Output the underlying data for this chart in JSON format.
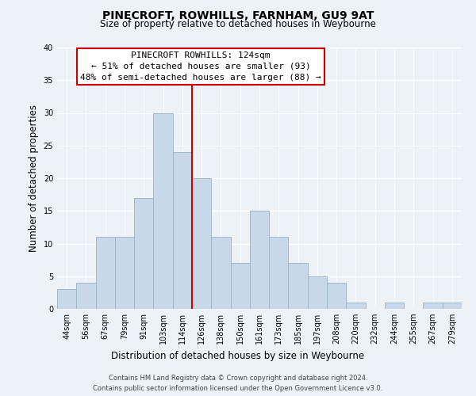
{
  "title": "PINECROFT, ROWHILLS, FARNHAM, GU9 9AT",
  "subtitle": "Size of property relative to detached houses in Weybourne",
  "xlabel": "Distribution of detached houses by size in Weybourne",
  "ylabel": "Number of detached properties",
  "bin_labels": [
    "44sqm",
    "56sqm",
    "67sqm",
    "79sqm",
    "91sqm",
    "103sqm",
    "114sqm",
    "126sqm",
    "138sqm",
    "150sqm",
    "161sqm",
    "173sqm",
    "185sqm",
    "197sqm",
    "208sqm",
    "220sqm",
    "232sqm",
    "244sqm",
    "255sqm",
    "267sqm",
    "279sqm"
  ],
  "bar_heights": [
    3,
    4,
    11,
    11,
    17,
    30,
    24,
    20,
    11,
    7,
    15,
    11,
    7,
    5,
    4,
    1,
    0,
    1,
    0,
    1,
    1
  ],
  "bar_color": "#c8d8e8",
  "bar_edge_color": "#a0b8cc",
  "vline_x_idx": 6.5,
  "vline_color": "#cc0000",
  "annotation_title": "PINECROFT ROWHILLS: 124sqm",
  "annotation_line1": "← 51% of detached houses are smaller (93)",
  "annotation_line2": "48% of semi-detached houses are larger (88) →",
  "annotation_box_color": "#ffffff",
  "annotation_box_edge": "#cc0000",
  "ylim": [
    0,
    40
  ],
  "yticks": [
    0,
    5,
    10,
    15,
    20,
    25,
    30,
    35,
    40
  ],
  "footer_line1": "Contains HM Land Registry data © Crown copyright and database right 2024.",
  "footer_line2": "Contains public sector information licensed under the Open Government Licence v3.0.",
  "background_color": "#edf2f7",
  "plot_bg_color": "#edf2f7"
}
